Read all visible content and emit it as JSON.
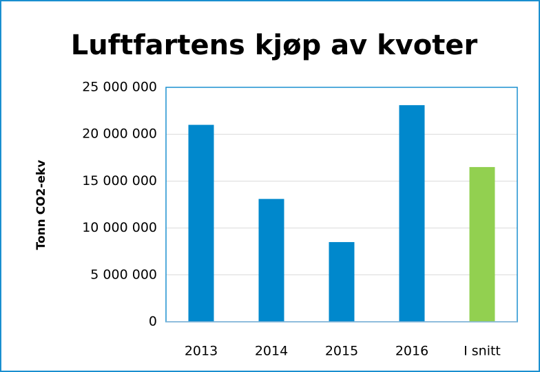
{
  "chart_data": {
    "type": "bar",
    "title": "Luftfartens kjøp av kvoter",
    "y_label": "Tonn CO2-ekv",
    "categories": [
      "2013",
      "2014",
      "2015",
      "2016",
      "I snitt"
    ],
    "values": [
      21000000,
      13100000,
      8500000,
      23100000,
      16500000
    ],
    "colors": [
      "#0088cc",
      "#0088cc",
      "#0088cc",
      "#0088cc",
      "#92d050"
    ],
    "ylim": [
      0,
      25000000
    ],
    "yticks": [
      0,
      {
        "value": 5000000,
        "label": "5 000 000"
      },
      {
        "value": 10000000,
        "label": "10 000 000"
      },
      {
        "value": 15000000,
        "label": "15 000 000"
      },
      {
        "value": 20000000,
        "label": "20 000 000"
      },
      {
        "value": 25000000,
        "label": "25 000 000"
      }
    ],
    "grid": true
  }
}
